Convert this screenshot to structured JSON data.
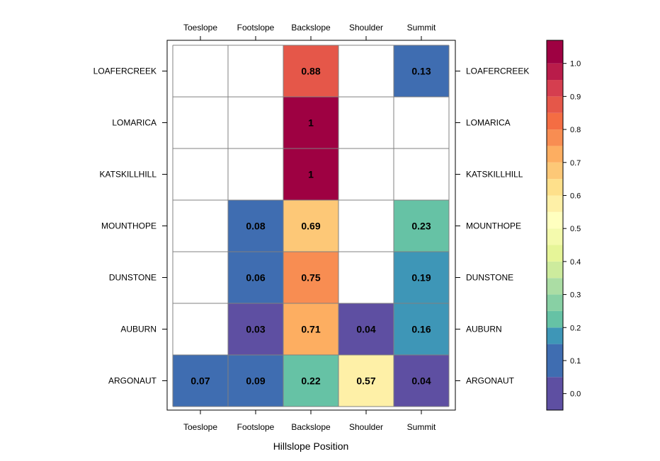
{
  "chart_data": {
    "type": "heatmap",
    "title": "",
    "xlabel": "Hillslope Position",
    "ylabel": "",
    "x_categories": [
      "Toeslope",
      "Footslope",
      "Backslope",
      "Shoulder",
      "Summit"
    ],
    "y_categories": [
      "LOAFERCREEK",
      "LOMARICA",
      "KATSKILLHILL",
      "MOUNTHOPE",
      "DUNSTONE",
      "AUBURN",
      "ARGONAUT"
    ],
    "values": [
      [
        null,
        null,
        0.88,
        null,
        0.13
      ],
      [
        null,
        null,
        1,
        null,
        null
      ],
      [
        null,
        null,
        1,
        null,
        null
      ],
      [
        null,
        0.08,
        0.69,
        null,
        0.23
      ],
      [
        null,
        0.06,
        0.75,
        null,
        0.19
      ],
      [
        null,
        0.03,
        0.71,
        0.04,
        0.16
      ],
      [
        0.07,
        0.09,
        0.22,
        0.57,
        0.04
      ]
    ],
    "value_labels": [
      [
        "",
        "",
        "0.88",
        "",
        "0.13"
      ],
      [
        "",
        "",
        "1",
        "",
        ""
      ],
      [
        "",
        "",
        "1",
        "",
        ""
      ],
      [
        "",
        "0.08",
        "0.69",
        "",
        "0.23"
      ],
      [
        "",
        "0.06",
        "0.75",
        "",
        "0.19"
      ],
      [
        "",
        "0.03",
        "0.71",
        "0.04",
        "0.16"
      ],
      [
        "0.07",
        "0.09",
        "0.22",
        "0.57",
        "0.04"
      ]
    ],
    "colorbar": {
      "range": [
        -0.05,
        1.07
      ],
      "breaks": [
        -0.05,
        0.05,
        0.15,
        0.2,
        0.25,
        0.3,
        0.35,
        0.4,
        0.45,
        0.5,
        0.55,
        0.6,
        0.65,
        0.7,
        0.75,
        0.8,
        0.85,
        0.9,
        0.95,
        1.0,
        1.07
      ],
      "colors": [
        "#5E4FA2",
        "#3F6DB1",
        "#3E96B7",
        "#66C2A5",
        "#88D0A4",
        "#ABDDA4",
        "#CDEB9D",
        "#E6F598",
        "#F4FAAD",
        "#FFFFBF",
        "#FEF0A7",
        "#FEE08B",
        "#FDC877",
        "#FDAE61",
        "#F88D52",
        "#F46D43",
        "#E55749",
        "#D53E4F",
        "#B91C4A",
        "#9E0142"
      ],
      "tick_values": [
        0.0,
        0.1,
        0.2,
        0.3,
        0.4,
        0.5,
        0.6,
        0.7,
        0.8,
        0.9,
        1.0
      ],
      "tick_labels": [
        "0.0",
        "0.1",
        "0.2",
        "0.3",
        "0.4",
        "0.5",
        "0.6",
        "0.7",
        "0.8",
        "0.9",
        "1.0"
      ]
    },
    "grid": true,
    "legend": "right"
  }
}
